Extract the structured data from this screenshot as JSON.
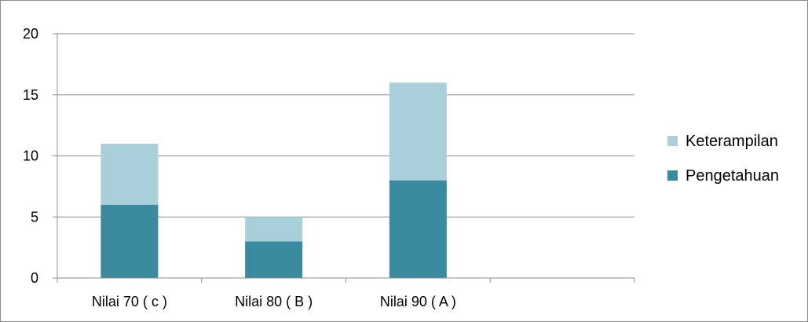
{
  "chart_data": {
    "type": "bar",
    "stacked": true,
    "title": "",
    "xlabel": "",
    "ylabel": "",
    "categories": [
      "Nilai 70 ( c )",
      "Nilai 80 ( B )",
      "Nilai 90 ( A )",
      ""
    ],
    "series": [
      {
        "name": "Pengetahuan",
        "values": [
          6,
          3,
          8,
          0
        ],
        "color": "#3a8aa0"
      },
      {
        "name": "Keterampilan",
        "values": [
          5,
          2,
          8,
          0
        ],
        "color": "#a9cfdb"
      }
    ],
    "ylim": [
      0,
      20
    ],
    "yticks": [
      0,
      5,
      10,
      15,
      20
    ],
    "grid": true,
    "legend_position": "right",
    "legend_order": [
      "Keterampilan",
      "Pengetahuan"
    ]
  }
}
